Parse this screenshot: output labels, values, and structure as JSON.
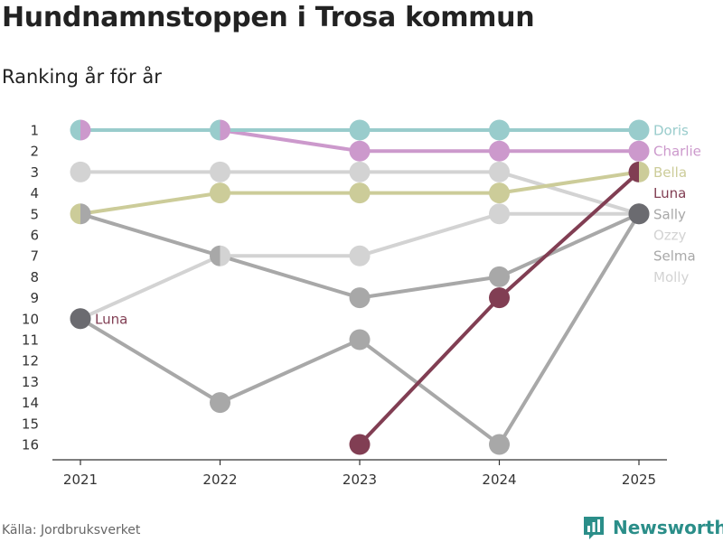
{
  "title": "Hundnamnstoppen i Trosa kommun",
  "subtitle": "Ranking år för år",
  "source": "Källa: Jordbruksverket",
  "brand": {
    "name": "Newsworthy",
    "icon": "bar-chart-logo-icon",
    "color": "#2b8e89"
  },
  "chart_data": {
    "type": "line",
    "subtype": "bump",
    "x": [
      "2021",
      "2022",
      "2023",
      "2024",
      "2025"
    ],
    "ylim": [
      1,
      16
    ],
    "y_inverted": true,
    "y_ticks": [
      "1",
      "2",
      "3",
      "4",
      "5",
      "6",
      "7",
      "8",
      "9",
      "10",
      "11",
      "12",
      "13",
      "14",
      "15",
      "16"
    ],
    "series": [
      {
        "name": "Ozzy",
        "color": "#d3d3d3",
        "ranks": [
          10,
          7,
          7,
          5,
          5
        ],
        "end_label": "Ozzy"
      },
      {
        "name": "Molly",
        "color": "#d3d3d3",
        "ranks": [
          3,
          3,
          3,
          3,
          5
        ],
        "end_label": "Molly"
      },
      {
        "name": "Selma",
        "color": "#a8a8a8",
        "ranks": [
          10,
          14,
          11,
          16,
          5
        ],
        "end_label": "Selma"
      },
      {
        "name": "Sally",
        "color": "#a8a8a8",
        "ranks": [
          5,
          7,
          9,
          8,
          5
        ],
        "end_label": "Sally"
      },
      {
        "name": "Bella",
        "color": "#cccc99",
        "ranks": [
          5,
          4,
          4,
          4,
          3
        ],
        "end_label": "Bella"
      },
      {
        "name": "Charlie",
        "color": "#cc99cc",
        "ranks": [
          1,
          1,
          2,
          2,
          2
        ],
        "end_label": "Charlie"
      },
      {
        "name": "Doris",
        "color": "#99cccc",
        "ranks": [
          1,
          1,
          1,
          1,
          1
        ],
        "end_label": "Doris"
      },
      {
        "name": "Luna",
        "color": "#813e53",
        "ranks": [
          null,
          null,
          16,
          9,
          3
        ],
        "end_label": "Luna"
      }
    ],
    "extra_markers": [
      {
        "x": "2021",
        "rank": 10,
        "color": "#6b6b70",
        "label": "Luna",
        "label_color": "#813e53"
      },
      {
        "x": "2025",
        "rank": 5,
        "color": "#6b6b70"
      }
    ]
  }
}
